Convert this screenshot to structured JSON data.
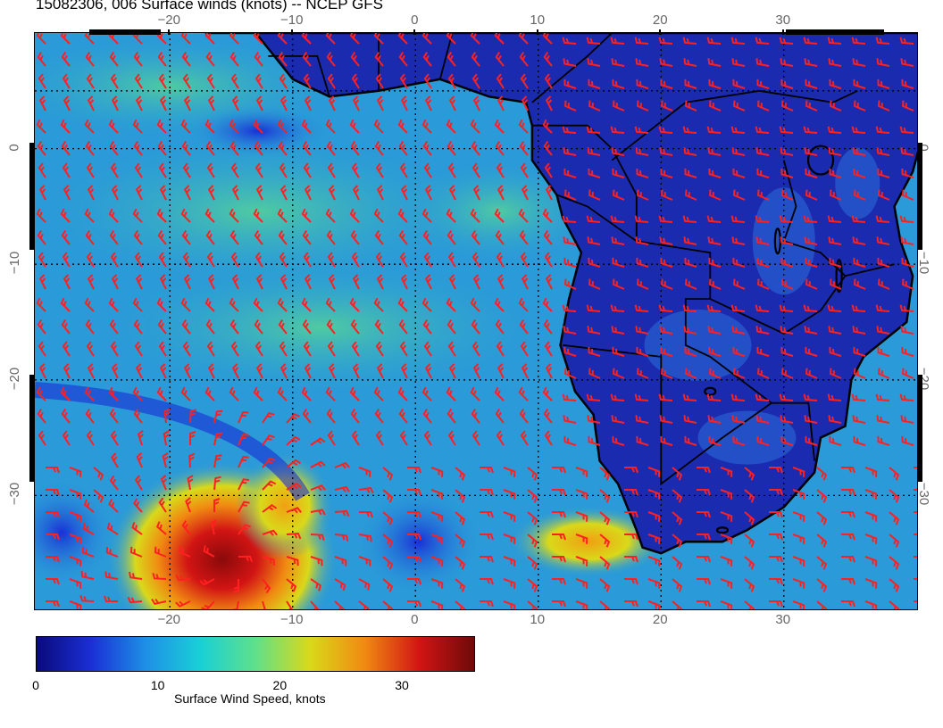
{
  "title": "15082306, 006 Surface winds (knots) -- NCEP GFS",
  "longitude_ticks": [
    {
      "label": "−20",
      "lon": -20
    },
    {
      "label": "−10",
      "lon": -10
    },
    {
      "label": "0",
      "lon": 0
    },
    {
      "label": "10",
      "lon": 10
    },
    {
      "label": "20",
      "lon": 20
    },
    {
      "label": "30",
      "lon": 30
    }
  ],
  "latitude_ticks": [
    {
      "label": "0",
      "lat": 0
    },
    {
      "label": "−10",
      "lat": -10
    },
    {
      "label": "−20",
      "lat": -20
    },
    {
      "label": "−30",
      "lat": -30
    }
  ],
  "colorbar": {
    "title": "Surface Wind Speed, knots",
    "labels": [
      {
        "label": "0",
        "value": 0
      },
      {
        "label": "10",
        "value": 10
      },
      {
        "label": "20",
        "value": 20
      },
      {
        "label": "30",
        "value": 30
      }
    ],
    "range": [
      0,
      36
    ],
    "colors": [
      "#0a0a7a",
      "#1a2fd6",
      "#1e90e6",
      "#19d0d6",
      "#5fe08a",
      "#d9d91a",
      "#f08a12",
      "#d21414",
      "#6e0a0a"
    ]
  },
  "map": {
    "lon_range": [
      -31,
      41
    ],
    "lat_range": [
      -40,
      10
    ],
    "ocean_color": "#2a9ad8",
    "land_color": "#1b2bb0",
    "border_color": "#000000",
    "barb_color": "#ff2020"
  }
}
